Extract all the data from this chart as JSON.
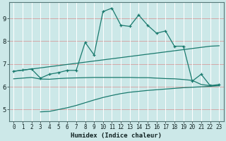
{
  "xlabel": "Humidex (Indice chaleur)",
  "background_color": "#cce8e8",
  "grid_color": "#b0d0d0",
  "red_line_color": "#cc9999",
  "line_color": "#1a7a6e",
  "xlim": [
    -0.5,
    23.5
  ],
  "ylim": [
    4.5,
    9.7
  ],
  "xticks": [
    0,
    1,
    2,
    3,
    4,
    5,
    6,
    7,
    8,
    9,
    10,
    11,
    12,
    13,
    14,
    15,
    16,
    17,
    18,
    19,
    20,
    21,
    22,
    23
  ],
  "yticks": [
    5,
    6,
    7,
    8,
    9
  ],
  "figsize": [
    3.2,
    2.0
  ],
  "dpi": 100,
  "lines": [
    {
      "x": [
        0,
        1,
        2,
        3,
        4,
        5,
        6,
        7,
        8,
        9,
        10,
        11,
        12,
        13,
        14,
        15,
        16,
        17,
        18,
        19,
        20,
        21,
        22,
        23
      ],
      "y": [
        6.68,
        6.73,
        6.78,
        6.83,
        6.88,
        6.93,
        6.98,
        7.03,
        7.08,
        7.13,
        7.18,
        7.23,
        7.28,
        7.33,
        7.38,
        7.43,
        7.48,
        7.53,
        7.58,
        7.63,
        7.68,
        7.73,
        7.78,
        7.8
      ],
      "marker": false,
      "lw": 0.9
    },
    {
      "x": [
        0,
        1,
        2,
        3,
        4,
        5,
        6,
        7,
        8,
        9,
        10,
        11,
        12,
        13,
        14,
        15,
        16,
        17,
        18,
        19,
        20,
        21,
        22,
        23
      ],
      "y": [
        6.35,
        6.38,
        6.41,
        6.34,
        6.33,
        6.36,
        6.38,
        6.39,
        6.4,
        6.41,
        6.41,
        6.41,
        6.41,
        6.41,
        6.4,
        6.4,
        6.38,
        6.36,
        6.35,
        6.32,
        6.28,
        6.1,
        6.05,
        6.05
      ],
      "marker": false,
      "lw": 0.9
    },
    {
      "x": [
        3,
        4,
        5,
        6,
        7,
        8,
        9,
        10,
        11,
        12,
        13,
        14,
        15,
        16,
        17,
        18,
        19,
        20,
        21,
        22,
        23
      ],
      "y": [
        4.9,
        4.92,
        5.0,
        5.08,
        5.18,
        5.3,
        5.42,
        5.53,
        5.62,
        5.7,
        5.76,
        5.8,
        5.84,
        5.87,
        5.9,
        5.93,
        5.96,
        5.98,
        6.0,
        6.02,
        6.05
      ],
      "marker": false,
      "lw": 0.9
    },
    {
      "x": [
        0,
        1,
        2,
        3,
        4,
        5,
        6,
        7,
        8,
        9,
        10,
        11,
        12,
        13,
        14,
        15,
        16,
        17,
        18,
        19,
        20,
        21,
        22,
        23
      ],
      "y": [
        6.68,
        6.73,
        6.78,
        6.38,
        6.55,
        6.62,
        6.72,
        6.72,
        7.95,
        7.4,
        9.3,
        9.45,
        8.7,
        8.65,
        9.15,
        8.7,
        8.35,
        8.45,
        7.78,
        7.78,
        6.25,
        6.55,
        6.05,
        6.1
      ],
      "marker": true,
      "lw": 0.9
    }
  ]
}
